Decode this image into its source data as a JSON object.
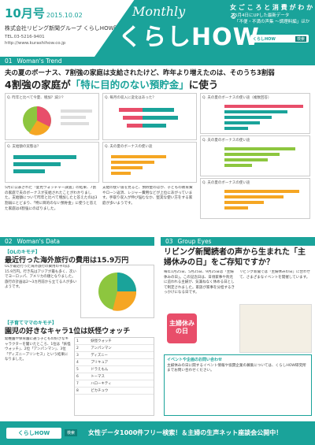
{
  "header": {
    "issue": "10月号",
    "date": "2015.10.02",
    "company": "株式会社リビング新聞グループ くらしHOW研究所",
    "phone": "TEL.03-5216-9401",
    "url": "http://www.kurashihow.co.jp",
    "brand_en": "Monthly",
    "brand_jp": "くらしHOW",
    "tagline": "女 ご こ ろ と 消 費 が わ か る",
    "subtag1": "5月4日にUPした最新データ",
    "subtag2": "「不便・不満の声集 〜調理料編」ほか",
    "search_label": "くらしHOW",
    "search_button": "検索"
  },
  "section1": {
    "number": "01",
    "label": "Woman's Trend",
    "headline_small": "夫の夏のボーナス、7割強の家庭は支給されたけど、昨年より増えたのは、そのうち3割弱",
    "headline_large_pre": "4割強の家庭が",
    "headline_large_em": "「特に目的のない預貯金」",
    "headline_large_post": "に使う",
    "chart_titles": [
      "Q. 昨年と比べて今夏、増加？減少？",
      "Q. 支給額の実態は？",
      "Q. 毎月の収入に変化はあった？",
      "Q. 夫の夏のボーナスの使い途",
      "Q. 夫の夏のボーナスの使い途（複数回答）",
      "Q. 夫の夏のボーナスの使い途",
      "Q. 夫の夏のボーナスの使い途"
    ],
    "body1": "5月に公表された「夏見ウォッチャー調査」の結果、7割の家庭で夫のボーナスが支給されたことがわかりました。支給額について昨年と比べて増加したと答えたのは3割弱にとどまり、「特に目的のない預貯金」に使うと答えた家庭は4割強にのぼりました。",
    "body2": "支給の使い道を見ると、預貯金のほか、子どもの教育費やローン返済、レジャー費用などが上位にあがっています。手取り収入が伸び悩むなか、堅実な使い方をする家庭が多いようです。"
  },
  "section2": {
    "number": "02",
    "label": "Woman's Data",
    "kicker": "【OLのキモチ】",
    "headline": "最近行った海外旅行の費用は15.9万円",
    "text": "OLが最近行った海外旅行の費用の平均は15.9万円。行き先はアジアが最も多く、次いでヨーロッパ、アメリカの順となりました。旅行の計画は2〜3カ月前から立てる人が多いようです。",
    "kicker2": "【子育てママのキモチ】",
    "headline2": "園児の好きなキャラ1位は妖怪ウォッチ",
    "text2": "幼稚園や保育園に通う子どもの好きなキャラクターを聞いたところ、1位は「妖怪ウォッチ」、2位「アンパンマン」、3位「ディズニープリンセス」という結果になりました。",
    "ranking": [
      {
        "rank": "1",
        "name": "妖怪ウォッチ"
      },
      {
        "rank": "2",
        "name": "アンパンマン"
      },
      {
        "rank": "3",
        "name": "ディズニー"
      },
      {
        "rank": "4",
        "name": "プリキュア"
      },
      {
        "rank": "5",
        "name": "ドラえもん"
      },
      {
        "rank": "6",
        "name": "トーマス"
      },
      {
        "rank": "7",
        "name": "ハローキティ"
      },
      {
        "rank": "8",
        "name": "ピカチュウ"
      }
    ]
  },
  "section3": {
    "number": "03",
    "label": "Group Eyes",
    "headline": "リビング新聞読者の声から生まれた「主婦休みの日」をご存知ですか？",
    "text": "毎年1月25日、5月25日、9月25日は「主婦休みの日」。この記念日は、日頃家事や育児に追われる主婦が、気兼ねなく休める日として制定されました。家族が家事を分担するきっかけになる日です。",
    "text2": "リビング新聞では「主婦休みの日」に合わせて、さまざまなイベントを開催しています。",
    "badge": "主婦休みの日",
    "box_title": "イベントや企画のお問い合わせ",
    "box_text": "主婦休みの日に関するイベント情報や協賛企業の募集については、くらしHOW研究所までお問い合わせください。"
  },
  "footer": {
    "logo": "くらしHOW",
    "search": "検索",
    "text": "女性データ1000件フリー検索！＆主婦の生声ネット座談会公開中！"
  }
}
